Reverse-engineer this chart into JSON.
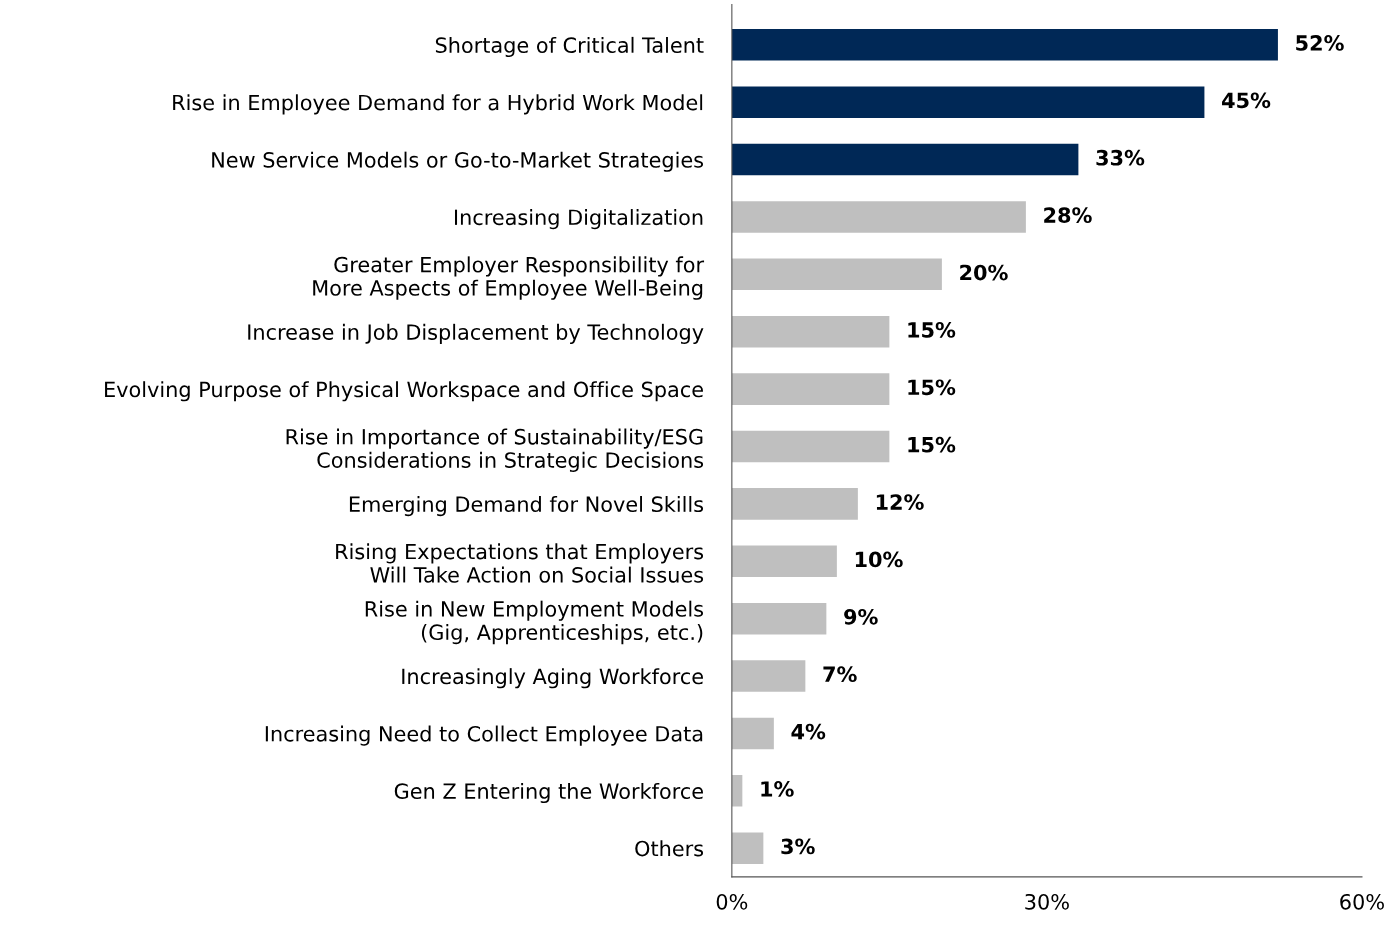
{
  "chart_data": {
    "type": "bar",
    "orientation": "horizontal",
    "categories": [
      "Shortage of Critical Talent",
      "Rise in Employee Demand for a Hybrid Work Model",
      "New Service Models or Go-to-Market Strategies",
      "Increasing Digitalization",
      "Greater Employer Responsibility for\nMore Aspects of Employee Well-Being",
      "Increase in Job Displacement by Technology",
      "Evolving Purpose of Physical Workspace and Office Space",
      "Rise in Importance of Sustainability/ESG\nConsiderations in Strategic Decisions",
      "Emerging Demand for Novel Skills",
      "Rising Expectations that Employers\nWill Take Action on Social Issues",
      "Rise in New Employment Models\n(Gig, Apprenticeships, etc.)",
      "Increasingly Aging Workforce",
      "Increasing Need to Collect Employee Data",
      "Gen Z Entering the Workforce",
      "Others"
    ],
    "values": [
      52,
      45,
      33,
      28,
      20,
      15,
      15,
      15,
      12,
      10,
      9,
      7,
      4,
      1,
      3
    ],
    "value_labels": [
      "52%",
      "45%",
      "33%",
      "28%",
      "20%",
      "15%",
      "15%",
      "15%",
      "12%",
      "10%",
      "9%",
      "7%",
      "4%",
      "1%",
      "3%"
    ],
    "colors": [
      "#002856",
      "#002856",
      "#002856",
      "#bfbfbf",
      "#bfbfbf",
      "#bfbfbf",
      "#bfbfbf",
      "#bfbfbf",
      "#bfbfbf",
      "#bfbfbf",
      "#bfbfbf",
      "#bfbfbf",
      "#bfbfbf",
      "#bfbfbf",
      "#bfbfbf"
    ],
    "xlim": [
      0,
      60
    ],
    "xticks": [
      {
        "value": 0,
        "label": "0%"
      },
      {
        "value": 30,
        "label": "30%"
      },
      {
        "value": 60,
        "label": "60%"
      }
    ],
    "grid": false,
    "legend": false
  }
}
